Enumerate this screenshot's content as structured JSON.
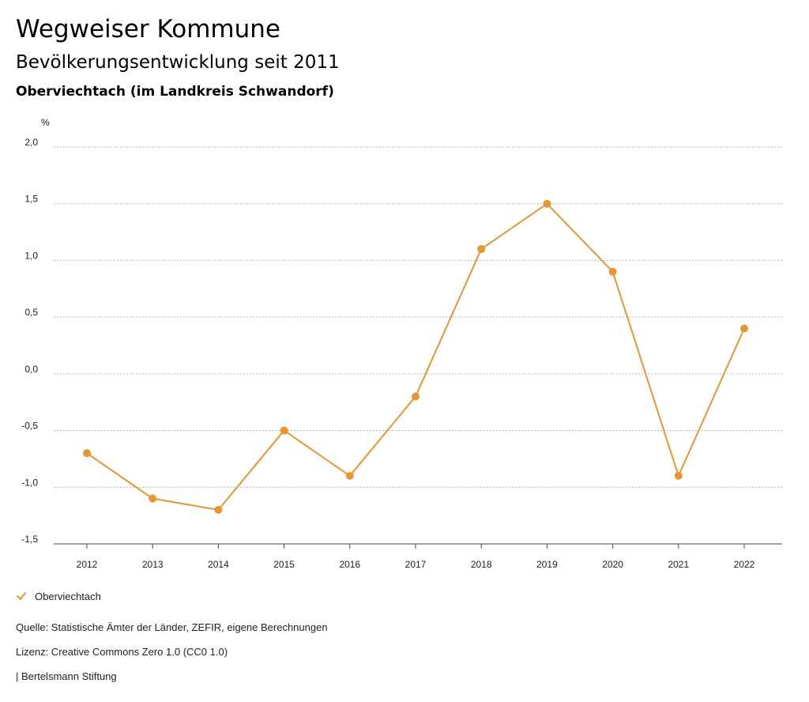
{
  "header": {
    "title": "Wegweiser Kommune",
    "subtitle": "Bevölkerungsentwicklung seit 2011",
    "chart_heading": "Oberviechtach (im Landkreis Schwandorf)"
  },
  "legend": {
    "label": "Oberviechtach"
  },
  "footer": {
    "source": "Quelle: Statistische Ämter der Länder, ZEFIR, eigene Berechnungen",
    "license": "Lizenz: Creative Commons Zero 1.0 (CC0 1.0)",
    "brand": "| Bertelsmann Stiftung"
  },
  "colors": {
    "series": "#E8962F",
    "grid": "#b0b0b0",
    "axis": "#444444"
  },
  "chart_data": {
    "type": "line",
    "title": "Bevölkerungsentwicklung seit 2011",
    "xlabel": "",
    "ylabel": "%",
    "x": [
      "2012",
      "2013",
      "2014",
      "2015",
      "2016",
      "2017",
      "2018",
      "2019",
      "2020",
      "2021",
      "2022"
    ],
    "series": [
      {
        "name": "Oberviechtach",
        "values": [
          -0.7,
          -1.1,
          -1.2,
          -0.5,
          -0.9,
          -0.2,
          1.1,
          1.5,
          0.9,
          -0.9,
          0.4
        ]
      }
    ],
    "ylim": [
      -1.5,
      2.0
    ],
    "yticks": [
      2.0,
      1.5,
      1.0,
      0.5,
      0.0,
      -0.5,
      -1.0,
      -1.5
    ],
    "ytick_labels": [
      "2,0",
      "1,5",
      "1,0",
      "0,5",
      "0,0",
      "-0,5",
      "-1,0",
      "-1,5"
    ],
    "grid": true,
    "legend_position": "bottom-left"
  }
}
